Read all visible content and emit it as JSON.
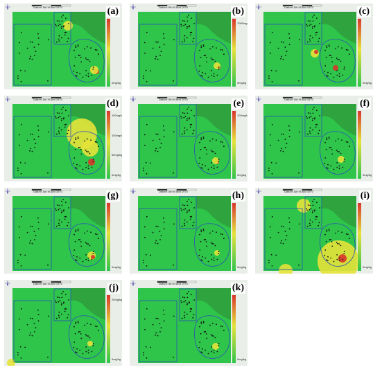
{
  "map_text": {
    "datum": "Datum: Ain el Abd 1970",
    "scale_labels": [
      "0",
      "5",
      "10",
      "20km",
      "30km"
    ]
  },
  "colors": {
    "background_green": "#2ec54a",
    "dark_green": "#2f9e3d",
    "yellow": "#e6e23a",
    "red": "#d9342b",
    "boundary": "#2c4fb8",
    "well": "#111111"
  },
  "panels": [
    {
      "id": "a",
      "label": "(a)",
      "legend": [
        "0mg/kg"
      ],
      "hotspots": [
        [
          "y",
          92,
          32,
          7
        ],
        [
          "r",
          133,
          98,
          4
        ],
        [
          "y",
          130,
          96,
          6
        ]
      ]
    },
    {
      "id": "b",
      "label": "(b)",
      "legend": [
        "1000mg/kg",
        "0mg/kg"
      ],
      "hotspots": [
        [
          "r",
          128,
          92,
          3
        ],
        [
          "y",
          126,
          90,
          5
        ]
      ]
    },
    {
      "id": "c",
      "label": "(c)",
      "legend": [
        "0mg/kg"
      ],
      "hotspots": [
        [
          "y",
          86,
          72,
          6
        ],
        [
          "r",
          88,
          70,
          3
        ],
        [
          "r",
          116,
          93,
          4
        ]
      ]
    },
    {
      "id": "d",
      "label": "(d)",
      "legend": [
        "150mg/kg",
        "100mg/kg",
        "50mg/kg",
        "0mg/kg"
      ],
      "hotspots": [
        [
          "y",
          112,
          55,
          22
        ],
        [
          "y",
          124,
          76,
          12
        ],
        [
          "r",
          126,
          96,
          5
        ]
      ]
    },
    {
      "id": "e",
      "label": "(e)",
      "legend": [
        "100mg/kg",
        "0mg/kg"
      ],
      "hotspots": [
        [
          "r",
          126,
          96,
          3
        ],
        [
          "y",
          124,
          94,
          5
        ]
      ]
    },
    {
      "id": "f",
      "label": "(f)",
      "legend": [
        "0mg/kg"
      ],
      "hotspots": [
        [
          "y",
          124,
          92,
          5
        ]
      ]
    },
    {
      "id": "g",
      "label": "(g)",
      "legend": [
        "0mg/kg"
      ],
      "hotspots": [
        [
          "y",
          126,
          98,
          6
        ],
        [
          "r",
          128,
          100,
          3
        ]
      ]
    },
    {
      "id": "h",
      "label": "(h)",
      "legend": [
        "0mg/kg"
      ],
      "hotspots": [
        [
          "y",
          126,
          94,
          4
        ]
      ]
    },
    {
      "id": "i",
      "label": "(i)",
      "legend": [
        "0mg/kg"
      ],
      "hotspots": [
        [
          "y",
          120,
          106,
          30
        ],
        [
          "y",
          44,
          120,
          10
        ],
        [
          "r",
          126,
          102,
          6
        ],
        [
          "y",
          70,
          26,
          10
        ]
      ]
    },
    {
      "id": "j",
      "label": "(j)",
      "legend": [
        "20mg/kg",
        "0mg/kg"
      ],
      "hotspots": [
        [
          "y",
          10,
          120,
          6
        ],
        [
          "y",
          124,
          92,
          4
        ]
      ]
    },
    {
      "id": "k",
      "label": "(k)",
      "legend": [
        "0mg/kg"
      ],
      "hotspots": [
        [
          "y",
          124,
          96,
          5
        ]
      ]
    }
  ]
}
